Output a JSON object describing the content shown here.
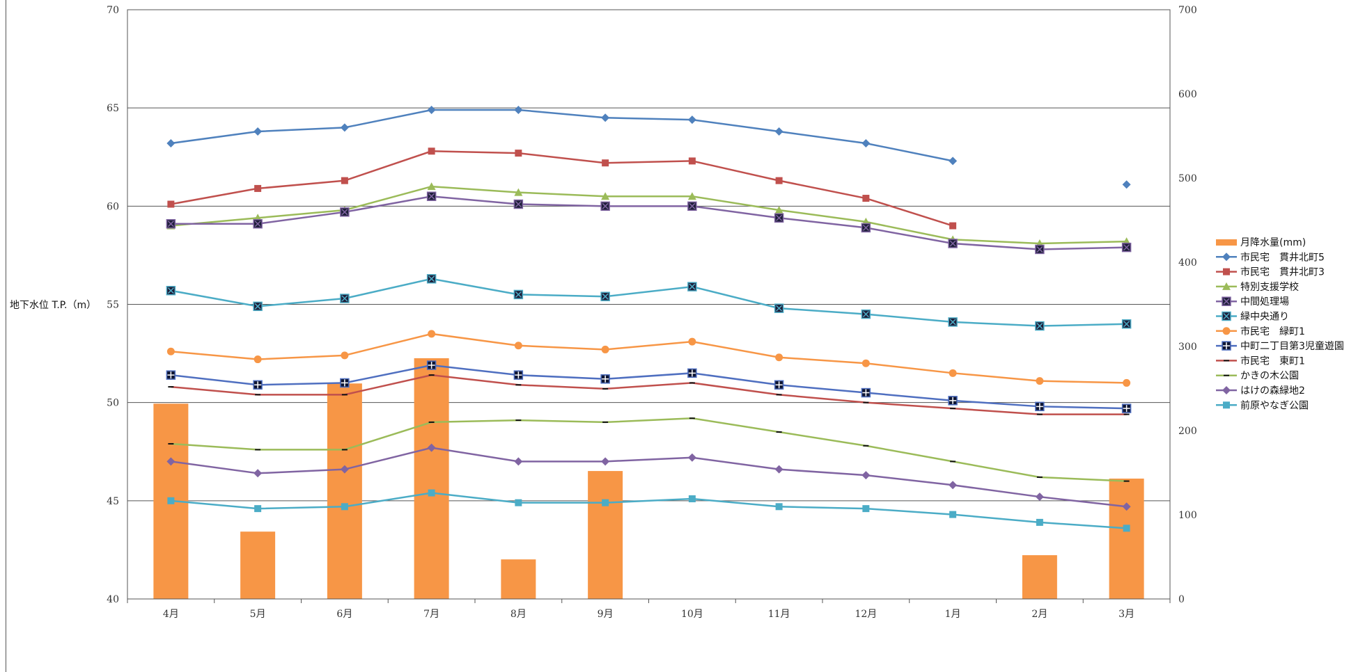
{
  "chart_data": {
    "type": "bar+line",
    "categories": [
      "4月",
      "5月",
      "6月",
      "7月",
      "8月",
      "9月",
      "10月",
      "11月",
      "12月",
      "1月",
      "2月",
      "3月"
    ],
    "ylabel": "地下水位 T.P.（m）",
    "ylim_left": [
      40,
      70
    ],
    "yticks_left": [
      40,
      45,
      50,
      55,
      60,
      65,
      70
    ],
    "ylim_right": [
      0,
      700
    ],
    "yticks_right": [
      0,
      100,
      200,
      300,
      400,
      500,
      600,
      700
    ],
    "grid": "horizontal",
    "legend_position": "right",
    "bar_series": {
      "name": "月降水量(mm)",
      "axis": "right",
      "color": "#f79646",
      "values": [
        232,
        80,
        256,
        286,
        47,
        152,
        0,
        0,
        0,
        0,
        52,
        143
      ]
    },
    "series": [
      {
        "name": "市民宅　貫井北町5",
        "color": "#4f81bd",
        "marker": "diamond",
        "values": [
          63.2,
          63.8,
          64.0,
          64.9,
          64.9,
          64.5,
          64.4,
          63.8,
          63.2,
          62.3,
          null,
          61.1
        ]
      },
      {
        "name": "市民宅　貫井北町3",
        "color": "#c0504d",
        "marker": "square",
        "values": [
          60.1,
          60.9,
          61.3,
          62.8,
          62.7,
          62.2,
          62.3,
          61.3,
          60.4,
          59.0,
          null,
          null
        ]
      },
      {
        "name": "特別支援学校",
        "color": "#9bbb59",
        "marker": "triangle",
        "values": [
          59.0,
          59.4,
          59.8,
          61.0,
          60.7,
          60.5,
          60.5,
          59.8,
          59.2,
          58.3,
          58.1,
          58.2
        ]
      },
      {
        "name": "中間処理場",
        "color": "#8064a2",
        "marker": "xsquare",
        "values": [
          59.1,
          59.1,
          59.7,
          60.5,
          60.1,
          60.0,
          60.0,
          59.4,
          58.9,
          58.1,
          57.8,
          57.9
        ]
      },
      {
        "name": "緑中央通り",
        "color": "#4bacc6",
        "marker": "xsquare",
        "values": [
          55.7,
          54.9,
          55.3,
          56.3,
          55.5,
          55.4,
          55.9,
          54.8,
          54.5,
          54.1,
          53.9,
          54.0
        ]
      },
      {
        "name": "市民宅　緑町1",
        "color": "#f79646",
        "marker": "circle",
        "values": [
          52.6,
          52.2,
          52.4,
          53.5,
          52.9,
          52.7,
          53.1,
          52.3,
          52.0,
          51.5,
          51.1,
          51.0
        ]
      },
      {
        "name": "中町二丁目第3児童遊園",
        "color": "#4f6fc0",
        "marker": "plus",
        "values": [
          51.4,
          50.9,
          51.0,
          51.9,
          51.4,
          51.2,
          51.5,
          50.9,
          50.5,
          50.1,
          49.8,
          49.7
        ]
      },
      {
        "name": "市民宅　東町1",
        "color": "#c0504d",
        "marker": "dash",
        "values": [
          50.8,
          50.4,
          50.4,
          51.4,
          50.9,
          50.7,
          51.0,
          50.4,
          50.0,
          49.7,
          49.4,
          49.4
        ]
      },
      {
        "name": "かきの木公園",
        "color": "#9bbb59",
        "marker": "dash",
        "values": [
          47.9,
          47.6,
          47.6,
          49.0,
          49.1,
          49.0,
          49.2,
          48.5,
          47.8,
          47.0,
          46.2,
          46.0
        ]
      },
      {
        "name": "はけの森緑地2",
        "color": "#8064a2",
        "marker": "diamond",
        "values": [
          47.0,
          46.4,
          46.6,
          47.7,
          47.0,
          47.0,
          47.2,
          46.6,
          46.3,
          45.8,
          45.2,
          44.7
        ]
      },
      {
        "name": "前原やなぎ公園",
        "color": "#4bacc6",
        "marker": "square",
        "values": [
          45.0,
          44.6,
          44.7,
          45.4,
          44.9,
          44.9,
          45.1,
          44.7,
          44.6,
          44.3,
          43.9,
          43.6
        ]
      }
    ]
  }
}
